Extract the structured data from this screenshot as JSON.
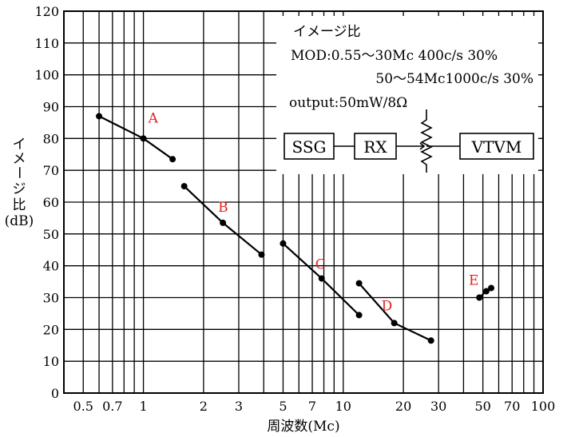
{
  "chart_data": {
    "type": "line",
    "title": "",
    "xlabel": "周波数(Mc)",
    "ylabel_lines": [
      "イ",
      "メ",
      "ー",
      "ジ",
      "比"
    ],
    "ylabel_unit": "(dB)",
    "x_scale": "log",
    "xlim": [
      0.4,
      100
    ],
    "ylim": [
      0,
      120
    ],
    "x_ticks": [
      0.5,
      0.7,
      1,
      2,
      3,
      5,
      7,
      10,
      20,
      30,
      50,
      70,
      100
    ],
    "x_tick_labels": [
      "0.5",
      "0.7",
      "1",
      "2",
      "3",
      "5",
      "7",
      "10",
      "20",
      "30",
      "50",
      "70",
      "100"
    ],
    "y_ticks": [
      0,
      10,
      20,
      30,
      40,
      50,
      60,
      70,
      80,
      90,
      100,
      110,
      120
    ],
    "y_tick_labels": [
      "0",
      "10",
      "20",
      "30",
      "40",
      "50",
      "60",
      "70",
      "80",
      "90",
      "100",
      "110",
      "120"
    ],
    "grid": true,
    "series_label_color": "#e02020",
    "series": [
      {
        "name": "A",
        "x": [
          0.6,
          1.0,
          1.4
        ],
        "y": [
          87,
          80,
          73.5
        ]
      },
      {
        "name": "B",
        "x": [
          1.6,
          2.5,
          3.9
        ],
        "y": [
          65,
          53.5,
          43.5
        ]
      },
      {
        "name": "C",
        "x": [
          5.0,
          7.8,
          12.0
        ],
        "y": [
          47,
          36,
          24.5
        ]
      },
      {
        "name": "D",
        "x": [
          12.0,
          18.0,
          27.5
        ],
        "y": [
          34.5,
          22,
          16.5
        ]
      },
      {
        "name": "E",
        "x": [
          48,
          52,
          55
        ],
        "y": [
          30,
          32,
          33
        ]
      }
    ],
    "inset": {
      "lines": [
        "イメージ比",
        "MOD:0.55〜30Mc  400c/s 30%",
        "50〜54Mc1000c/s 30%",
        "output:50mW/8Ω"
      ],
      "diagram": {
        "boxes": [
          "SSG",
          "RX",
          "VTVM"
        ]
      }
    }
  }
}
